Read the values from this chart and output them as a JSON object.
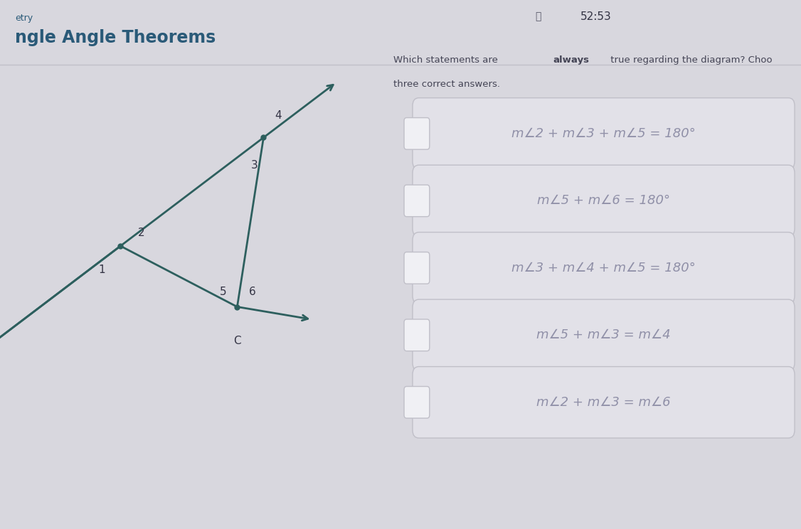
{
  "title_sub": "etry",
  "title_main": "ngle Angle Theorems",
  "timer": "52:53",
  "question_normal": "Which statements are ",
  "question_bold": "always",
  "question_rest": " true regarding the diagram? Choose\nthree correct answers.",
  "options": [
    "m∠2 + m∠3 + m∠5 = 180°",
    "m∠5 + m∠6 = 180°",
    "m∠3 + m∠4 + m∠5 = 180°",
    "m∠5 + m∠3 = m∠4",
    "m∠2 + m∠3 = m∠6"
  ],
  "bg_left": "#d8d7de",
  "bg_right": "#ebebf0",
  "title_color": "#2a5a78",
  "diagram_line_color": "#2d5f5e",
  "option_box_bg": "#e2e1e8",
  "option_box_border": "#c0bfc8",
  "option_text_color": "#9090a8",
  "checkbox_bg": "#f0f0f4",
  "header_line_color": "#c0bfc8",
  "question_text_color": "#444455",
  "timer_color": "#333344"
}
